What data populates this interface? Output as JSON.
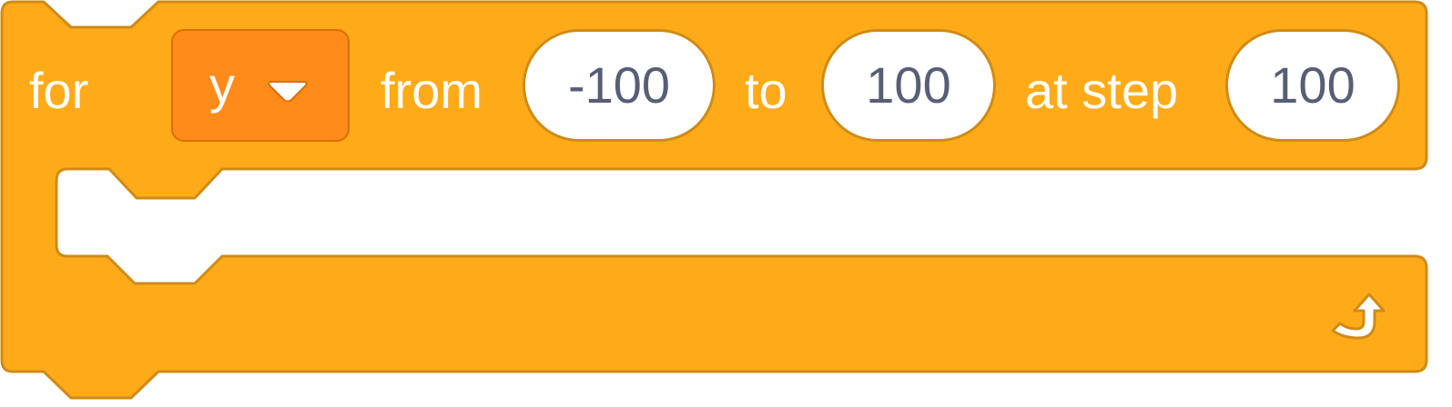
{
  "block": {
    "for_label": "for",
    "variable": "y",
    "from_label": "from",
    "from_value": "-100",
    "to_label": "to",
    "to_value": "100",
    "step_label": "at step",
    "step_value": "100"
  },
  "colors": {
    "block_fill": "#ffab19",
    "block_border": "#cf8b17",
    "variable_fill": "#ff8c1a",
    "input_text": "#575e75"
  },
  "icons": {
    "dropdown": "chevron-down-icon",
    "loop_end": "repeat-arrow-icon"
  }
}
